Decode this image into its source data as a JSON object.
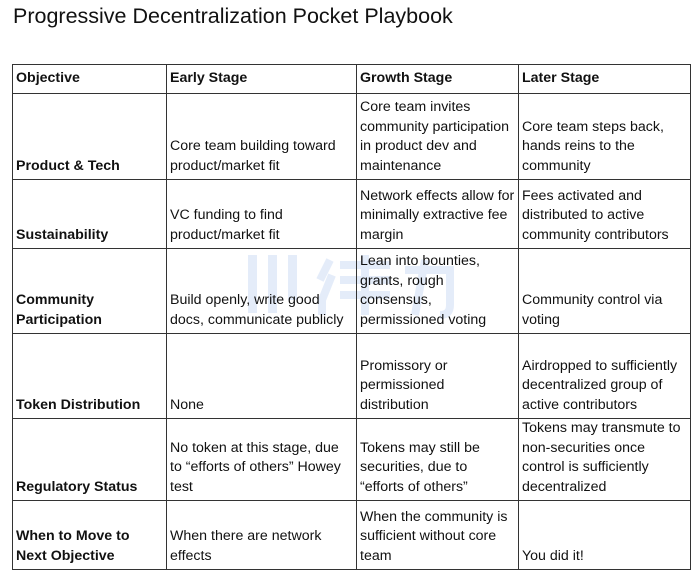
{
  "title": "Progressive Decentralization Pocket Playbook",
  "table": {
    "headers": [
      "Objective",
      "Early Stage",
      "Growth Stage",
      "Later Stage"
    ],
    "rows": [
      [
        "Product & Tech",
        "Core team building toward product/market fit",
        "Core team invites community participation in product dev and maintenance",
        "Core team steps back, hands reins to the community"
      ],
      [
        "Sustainability",
        "VC funding to find product/market fit",
        "Network effects allow for minimally extractive fee margin",
        "Fees activated and distributed to active community contributors"
      ],
      [
        "Community Participation",
        "Build openly, write good docs, communicate publicly",
        "Lean into bounties, grants, rough consensus, permissioned voting",
        "Community control via voting"
      ],
      [
        "Token Distribution",
        "None",
        "Promissory or permissioned distribution",
        "Airdropped to sufficiently decentralized group of active contributors"
      ],
      [
        "Regulatory Status",
        "No token at this stage, due to “efforts of others” Howey test",
        "Tokens may still be securities, due to “efforts of others”",
        "Tokens may transmute to non-securities once control is sufficiently decentralized"
      ],
      [
        "When to Move to Next Objective",
        "When there are network effects",
        "When the community is sufficient without core team",
        "You did it!"
      ]
    ]
  },
  "watermark": {
    "color": "#2a6bd6"
  }
}
